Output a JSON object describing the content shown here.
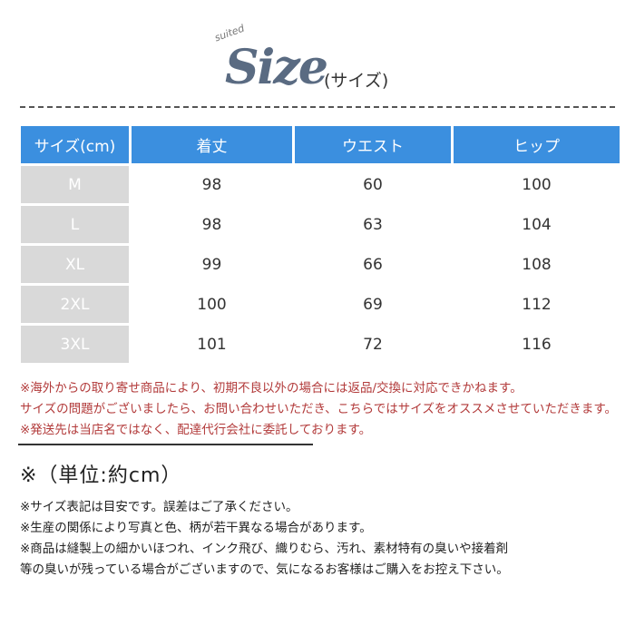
{
  "header": {
    "logo_small": "suited",
    "logo_word": "Size",
    "subtitle": "(サイズ)"
  },
  "table": {
    "columns": [
      "サイズ(cm)",
      "着丈",
      "ウエスト",
      "ヒップ"
    ],
    "rows": [
      [
        "M",
        "98",
        "60",
        "100"
      ],
      [
        "L",
        "98",
        "63",
        "104"
      ],
      [
        "XL",
        "99",
        "66",
        "108"
      ],
      [
        "2XL",
        "100",
        "69",
        "112"
      ],
      [
        "3XL",
        "101",
        "72",
        "116"
      ]
    ]
  },
  "warnings": [
    "※海外からの取り寄せ商品により、初期不良以外の場合には返品/交換に対応できかねます。",
    "サイズの問題がございましたら、お問い合わせいただき、こちらではサイズをオススメさせていただきます。",
    "※発送先は当店名ではなく、配達代行会社に委託しております。"
  ],
  "unit": "※（単位:約cm）",
  "notes": [
    "※サイズ表記は目安です。誤差はご了承ください。",
    "※生産の関係により写真と色、柄が若干異なる場合があります。",
    "※商品は縫製上の細かいほつれ、インク飛び、織りむら、汚れ、素材特有の臭いや接着剤",
    "等の臭いが残っている場合がございますので、気になるお客様はご購入をお控え下さい。"
  ],
  "colors": {
    "header_bg": "#3b8fdf",
    "size_cell_bg": "#d9d9d9",
    "warning_text": "#b23a3a",
    "logo": "#5a6b82"
  }
}
